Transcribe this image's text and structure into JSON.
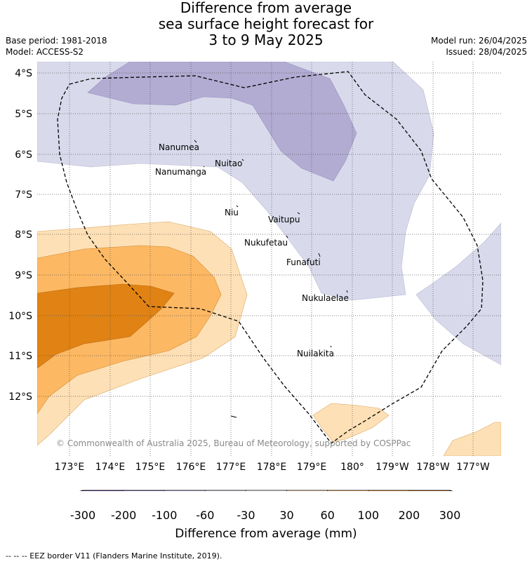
{
  "title": {
    "line1": "Difference from average",
    "line2": "sea surface height forecast for",
    "line3": "3 to 9 May 2025"
  },
  "meta": {
    "base_period": "Base period: 1981-2018",
    "model": "Model: ACCESS-S2",
    "model_run": "Model run: 26/04/2025",
    "issued": "Issued: 28/04/2025"
  },
  "map": {
    "lat_labels": [
      "4°S",
      "5°S",
      "6°S",
      "7°S",
      "8°S",
      "9°S",
      "10°S",
      "11°S",
      "12°S"
    ],
    "lon_labels": [
      "173°E",
      "174°E",
      "175°E",
      "176°E",
      "177°E",
      "178°E",
      "179°E",
      "180°",
      "179°W",
      "178°W",
      "177°W"
    ],
    "places": {
      "nanumea": "Nanumea",
      "nanumanga": "Nanumanga",
      "nuitao": "Nuitao",
      "niu": "Niu",
      "vaitupu": "Vaitupu",
      "nukufetau": "Nukufetau",
      "funafuti": "Funafuti",
      "nukulaelae": "Nukulaelae",
      "nuilakita": "Nuilakita"
    },
    "copyright": "© Commonwealth of Australia 2025, Bureau of Meteorology, supported by COSPPac"
  },
  "colorbar": {
    "title": "Difference from average (mm)",
    "ticks": [
      "-300",
      "-200",
      "-100",
      "-60",
      "-30",
      "30",
      "60",
      "100",
      "200",
      "300"
    ],
    "colors": [
      "#3b0f57",
      "#542788",
      "#8073ac",
      "#b2abd2",
      "#d8daeb",
      "#ffffff",
      "#fee0b6",
      "#fdb863",
      "#e08214",
      "#b35806",
      "#7f3b08"
    ]
  },
  "footer": "-- -- -- EEZ border V11 (Flanders Marine Institute, 2019)."
}
